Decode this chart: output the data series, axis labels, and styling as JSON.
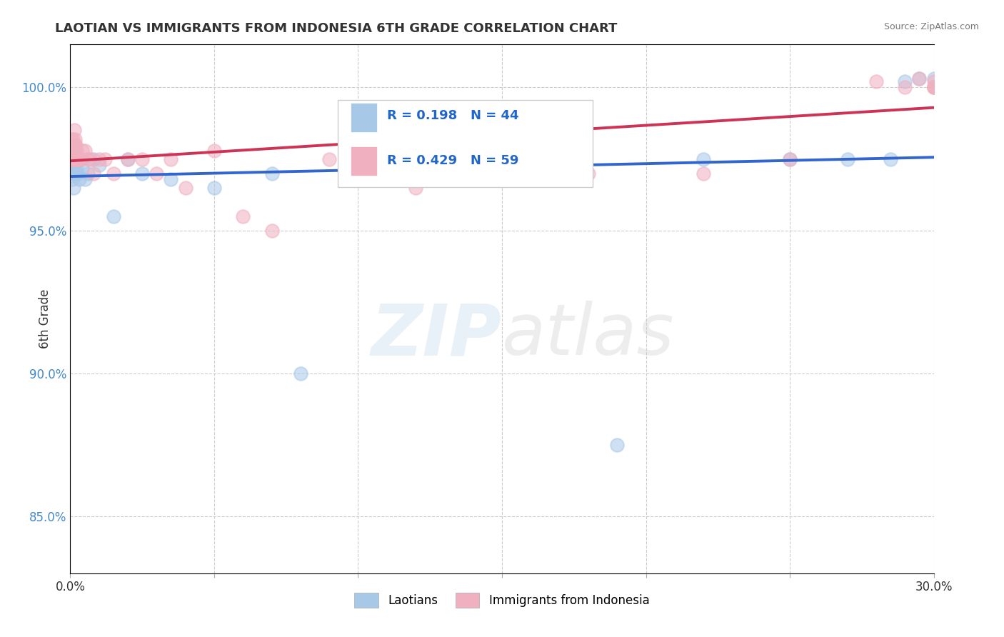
{
  "title": "LAOTIAN VS IMMIGRANTS FROM INDONESIA 6TH GRADE CORRELATION CHART",
  "source": "Source: ZipAtlas.com",
  "ylabel": "6th Grade",
  "xlim": [
    0.0,
    30.0
  ],
  "ylim": [
    83.0,
    101.5
  ],
  "yticks": [
    85.0,
    90.0,
    95.0,
    100.0
  ],
  "ytick_labels": [
    "85.0%",
    "90.0%",
    "95.0%",
    "100.0%"
  ],
  "blue_R": 0.198,
  "blue_N": 44,
  "pink_R": 0.429,
  "pink_N": 59,
  "blue_color": "#a8c8e8",
  "pink_color": "#f0b0c0",
  "blue_line_color": "#3366cc",
  "pink_line_color": "#cc3355",
  "blue_label": "Laotians",
  "pink_label": "Immigrants from Indonesia",
  "blue_x": [
    0.02,
    0.03,
    0.04,
    0.05,
    0.06,
    0.07,
    0.08,
    0.09,
    0.1,
    0.11,
    0.12,
    0.13,
    0.14,
    0.15,
    0.16,
    0.17,
    0.18,
    0.2,
    0.22,
    0.25,
    0.3,
    0.35,
    0.4,
    0.5,
    0.6,
    0.8,
    1.0,
    1.5,
    2.0,
    2.5,
    3.5,
    5.0,
    7.0,
    8.0,
    11.0,
    15.0,
    19.0,
    22.0,
    25.0,
    27.0,
    28.5,
    29.0,
    29.5,
    30.0
  ],
  "blue_y": [
    97.8,
    97.5,
    97.2,
    97.6,
    97.3,
    96.8,
    97.0,
    97.4,
    97.5,
    96.5,
    97.8,
    97.2,
    97.0,
    97.5,
    97.8,
    97.3,
    97.0,
    97.5,
    97.2,
    97.0,
    96.8,
    97.5,
    97.2,
    96.8,
    97.0,
    97.5,
    97.3,
    95.5,
    97.5,
    97.0,
    96.8,
    96.5,
    97.0,
    90.0,
    97.5,
    97.0,
    87.5,
    97.5,
    97.5,
    97.5,
    97.5,
    100.2,
    100.3,
    100.3
  ],
  "pink_x": [
    0.01,
    0.02,
    0.03,
    0.04,
    0.05,
    0.05,
    0.06,
    0.07,
    0.08,
    0.08,
    0.09,
    0.1,
    0.1,
    0.11,
    0.12,
    0.12,
    0.13,
    0.14,
    0.15,
    0.16,
    0.17,
    0.18,
    0.19,
    0.2,
    0.21,
    0.22,
    0.25,
    0.3,
    0.35,
    0.4,
    0.5,
    0.6,
    0.7,
    0.8,
    1.0,
    1.2,
    1.5,
    2.0,
    2.5,
    3.0,
    3.5,
    4.0,
    5.0,
    6.0,
    7.0,
    9.0,
    12.0,
    15.0,
    18.0,
    22.0,
    25.0,
    28.0,
    29.0,
    29.5,
    30.0,
    30.0,
    30.0,
    30.0,
    30.0
  ],
  "pink_y": [
    97.5,
    98.0,
    97.8,
    97.5,
    98.2,
    97.5,
    97.8,
    97.5,
    97.8,
    98.0,
    97.5,
    98.2,
    97.5,
    97.8,
    98.0,
    97.5,
    97.8,
    98.5,
    97.8,
    98.2,
    98.0,
    97.5,
    97.5,
    98.0,
    97.5,
    97.8,
    97.5,
    97.5,
    97.5,
    97.8,
    97.8,
    97.5,
    97.5,
    97.0,
    97.5,
    97.5,
    97.0,
    97.5,
    97.5,
    97.0,
    97.5,
    96.5,
    97.8,
    95.5,
    95.0,
    97.5,
    96.5,
    96.8,
    97.0,
    97.0,
    97.5,
    100.2,
    100.0,
    100.3,
    100.2,
    100.0,
    100.0,
    100.0,
    100.0
  ],
  "watermark_zip": "ZIP",
  "watermark_atlas": "atlas"
}
